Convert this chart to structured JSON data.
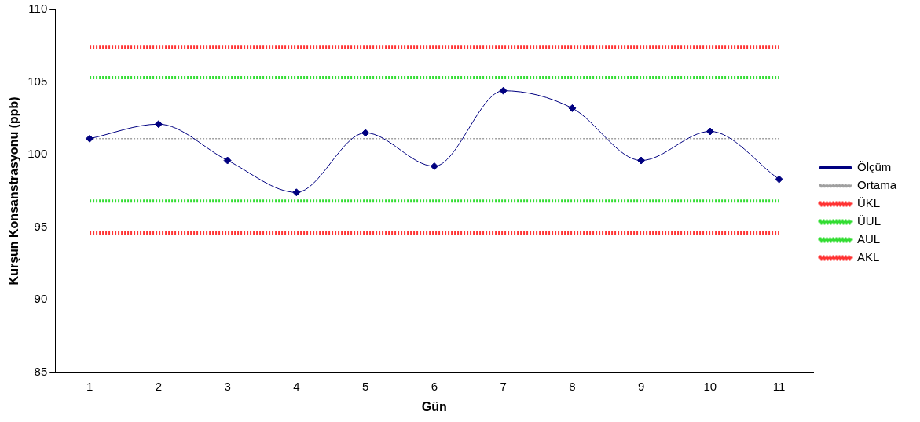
{
  "chart_data": {
    "type": "line",
    "xlabel": "Gün",
    "ylabel": "Kurşun Konsanstrasyonu (ppb)",
    "categories": [
      "1",
      "2",
      "3",
      "4",
      "5",
      "6",
      "7",
      "8",
      "9",
      "10",
      "11"
    ],
    "ylim": [
      85,
      110
    ],
    "yticks": [
      85,
      90,
      95,
      100,
      105,
      110
    ],
    "grid": false,
    "legend": "right",
    "series": [
      {
        "name": "Ölçüm",
        "color": "#000080",
        "marker": "diamond",
        "line_style": "solid",
        "values": [
          101.1,
          102.1,
          99.6,
          97.4,
          101.5,
          99.2,
          104.4,
          103.2,
          99.6,
          101.6,
          98.3
        ]
      },
      {
        "name": "Ortama",
        "color": "#a0a0a0",
        "marker": "none",
        "line_style": "dotted",
        "values": [
          101.1,
          101.1,
          101.1,
          101.1,
          101.1,
          101.1,
          101.1,
          101.1,
          101.1,
          101.1,
          101.1
        ]
      },
      {
        "name": "ÜKL",
        "color": "#ff3333",
        "marker": "none",
        "line_style": "dotted",
        "values": [
          107.4,
          107.4,
          107.4,
          107.4,
          107.4,
          107.4,
          107.4,
          107.4,
          107.4,
          107.4,
          107.4
        ]
      },
      {
        "name": "ÜUL",
        "color": "#33dd33",
        "marker": "none",
        "line_style": "dotted",
        "values": [
          96.8,
          96.8,
          96.8,
          96.8,
          96.8,
          96.8,
          96.8,
          96.8,
          96.8,
          96.8,
          96.8
        ]
      },
      {
        "name": "AUL",
        "color": "#33dd33",
        "marker": "none",
        "line_style": "dotted",
        "values": [
          105.3,
          105.3,
          105.3,
          105.3,
          105.3,
          105.3,
          105.3,
          105.3,
          105.3,
          105.3,
          105.3
        ]
      },
      {
        "name": "AKL",
        "color": "#ff3333",
        "marker": "none",
        "line_style": "dotted",
        "values": [
          94.6,
          94.6,
          94.6,
          94.6,
          94.6,
          94.6,
          94.6,
          94.6,
          94.6,
          94.6,
          94.6
        ]
      }
    ]
  }
}
